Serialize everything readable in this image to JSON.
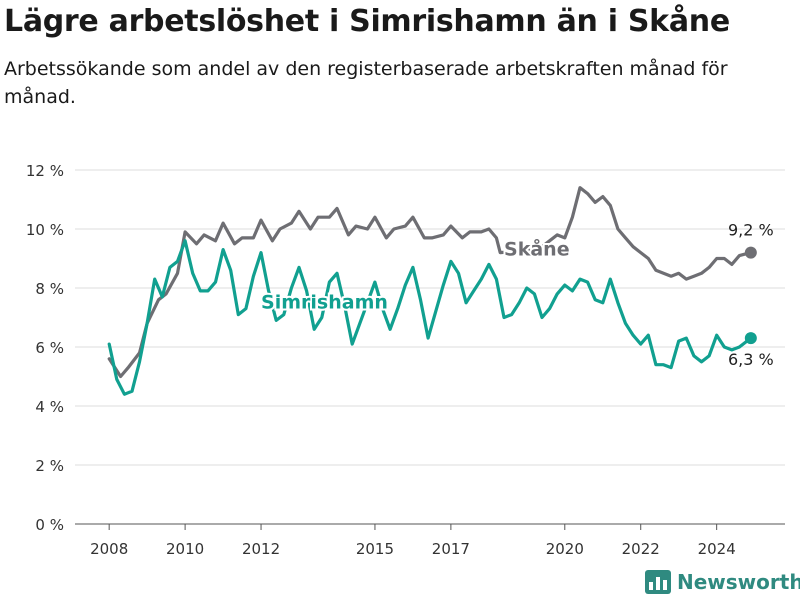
{
  "header": {
    "title": "Lägre arbetslöshet i Simrishamn än i Skåne",
    "subtitle": "Arbetssökande som andel av den registerbaserade arbetskraften månad för månad."
  },
  "brand": {
    "name": "Newsworthy",
    "color": "#2f8a80"
  },
  "chart_data": {
    "type": "line",
    "title": "Lägre arbetslöshet i Simrishamn än i Skåne",
    "subtitle": "Arbetssökande som andel av den registerbaserade arbetskraften månad för månad.",
    "xlabel": "",
    "ylabel": "",
    "x_ticks": [
      "2008",
      "2010",
      "2012",
      "2015",
      "2017",
      "2020",
      "2022",
      "2024"
    ],
    "y_ticks": [
      "0 %",
      "2 %",
      "4 %",
      "6 %",
      "8 %",
      "10 %",
      "12 %"
    ],
    "ylim": [
      0,
      12
    ],
    "xlim": [
      2007.1,
      2025.8
    ],
    "grid": true,
    "series": [
      {
        "name": "Skåne",
        "color": "#6e6e73",
        "end_label": "9,2 %",
        "points": [
          [
            2008.0,
            5.6
          ],
          [
            2008.3,
            5.0
          ],
          [
            2008.5,
            5.3
          ],
          [
            2008.8,
            5.8
          ],
          [
            2009.0,
            6.8
          ],
          [
            2009.3,
            7.6
          ],
          [
            2009.5,
            7.8
          ],
          [
            2009.8,
            8.5
          ],
          [
            2010.0,
            9.9
          ],
          [
            2010.3,
            9.5
          ],
          [
            2010.5,
            9.8
          ],
          [
            2010.8,
            9.6
          ],
          [
            2011.0,
            10.2
          ],
          [
            2011.3,
            9.5
          ],
          [
            2011.5,
            9.7
          ],
          [
            2011.8,
            9.7
          ],
          [
            2012.0,
            10.3
          ],
          [
            2012.3,
            9.6
          ],
          [
            2012.5,
            10.0
          ],
          [
            2012.8,
            10.2
          ],
          [
            2013.0,
            10.6
          ],
          [
            2013.3,
            10.0
          ],
          [
            2013.5,
            10.4
          ],
          [
            2013.8,
            10.4
          ],
          [
            2014.0,
            10.7
          ],
          [
            2014.3,
            9.8
          ],
          [
            2014.5,
            10.1
          ],
          [
            2014.8,
            10.0
          ],
          [
            2015.0,
            10.4
          ],
          [
            2015.3,
            9.7
          ],
          [
            2015.5,
            10.0
          ],
          [
            2015.8,
            10.1
          ],
          [
            2016.0,
            10.4
          ],
          [
            2016.3,
            9.7
          ],
          [
            2016.5,
            9.7
          ],
          [
            2016.8,
            9.8
          ],
          [
            2017.0,
            10.1
          ],
          [
            2017.3,
            9.7
          ],
          [
            2017.5,
            9.9
          ],
          [
            2017.8,
            9.9
          ],
          [
            2018.0,
            10.0
          ],
          [
            2018.2,
            9.7
          ],
          [
            2018.3,
            9.2
          ],
          [
            2019.3,
            9.3
          ],
          [
            2019.6,
            9.6
          ],
          [
            2019.8,
            9.8
          ],
          [
            2020.0,
            9.7
          ],
          [
            2020.2,
            10.4
          ],
          [
            2020.4,
            11.4
          ],
          [
            2020.6,
            11.2
          ],
          [
            2020.8,
            10.9
          ],
          [
            2021.0,
            11.1
          ],
          [
            2021.2,
            10.8
          ],
          [
            2021.4,
            10.0
          ],
          [
            2021.6,
            9.7
          ],
          [
            2021.8,
            9.4
          ],
          [
            2022.0,
            9.2
          ],
          [
            2022.2,
            9.0
          ],
          [
            2022.4,
            8.6
          ],
          [
            2022.6,
            8.5
          ],
          [
            2022.8,
            8.4
          ],
          [
            2023.0,
            8.5
          ],
          [
            2023.2,
            8.3
          ],
          [
            2023.4,
            8.4
          ],
          [
            2023.6,
            8.5
          ],
          [
            2023.8,
            8.7
          ],
          [
            2024.0,
            9.0
          ],
          [
            2024.2,
            9.0
          ],
          [
            2024.4,
            8.8
          ],
          [
            2024.6,
            9.1
          ],
          [
            2024.9,
            9.2
          ]
        ]
      },
      {
        "name": "Simrishamn",
        "color": "#11a090",
        "end_label": "6,3 %",
        "points": [
          [
            2008.0,
            6.1
          ],
          [
            2008.2,
            4.9
          ],
          [
            2008.4,
            4.4
          ],
          [
            2008.6,
            4.5
          ],
          [
            2008.8,
            5.5
          ],
          [
            2009.0,
            6.8
          ],
          [
            2009.2,
            8.3
          ],
          [
            2009.4,
            7.7
          ],
          [
            2009.6,
            8.7
          ],
          [
            2009.8,
            8.9
          ],
          [
            2010.0,
            9.6
          ],
          [
            2010.2,
            8.5
          ],
          [
            2010.4,
            7.9
          ],
          [
            2010.6,
            7.9
          ],
          [
            2010.8,
            8.2
          ],
          [
            2011.0,
            9.3
          ],
          [
            2011.2,
            8.6
          ],
          [
            2011.4,
            7.1
          ],
          [
            2011.6,
            7.3
          ],
          [
            2011.8,
            8.4
          ],
          [
            2012.0,
            9.2
          ],
          [
            2012.2,
            7.9
          ],
          [
            2012.4,
            6.9
          ],
          [
            2012.6,
            7.1
          ],
          [
            2012.8,
            8.0
          ],
          [
            2013.0,
            8.7
          ],
          [
            2013.2,
            7.9
          ],
          [
            2013.4,
            6.6
          ],
          [
            2013.6,
            7.0
          ],
          [
            2013.8,
            8.2
          ],
          [
            2014.0,
            8.5
          ],
          [
            2014.2,
            7.4
          ],
          [
            2014.4,
            6.1
          ],
          [
            2014.6,
            6.8
          ],
          [
            2014.8,
            7.5
          ],
          [
            2015.0,
            8.2
          ],
          [
            2015.2,
            7.3
          ],
          [
            2015.4,
            6.6
          ],
          [
            2015.6,
            7.3
          ],
          [
            2015.8,
            8.1
          ],
          [
            2016.0,
            8.7
          ],
          [
            2016.2,
            7.6
          ],
          [
            2016.4,
            6.3
          ],
          [
            2016.6,
            7.2
          ],
          [
            2016.8,
            8.1
          ],
          [
            2017.0,
            8.9
          ],
          [
            2017.2,
            8.5
          ],
          [
            2017.4,
            7.5
          ],
          [
            2017.6,
            7.9
          ],
          [
            2017.8,
            8.3
          ],
          [
            2018.0,
            8.8
          ],
          [
            2018.2,
            8.3
          ],
          [
            2018.4,
            7.0
          ],
          [
            2018.6,
            7.1
          ],
          [
            2018.8,
            7.5
          ],
          [
            2019.0,
            8.0
          ],
          [
            2019.2,
            7.8
          ],
          [
            2019.4,
            7.0
          ],
          [
            2019.6,
            7.3
          ],
          [
            2019.8,
            7.8
          ],
          [
            2020.0,
            8.1
          ],
          [
            2020.2,
            7.9
          ],
          [
            2020.4,
            8.3
          ],
          [
            2020.6,
            8.2
          ],
          [
            2020.8,
            7.6
          ],
          [
            2021.0,
            7.5
          ],
          [
            2021.2,
            8.3
          ],
          [
            2021.4,
            7.5
          ],
          [
            2021.6,
            6.8
          ],
          [
            2021.8,
            6.4
          ],
          [
            2022.0,
            6.1
          ],
          [
            2022.2,
            6.4
          ],
          [
            2022.4,
            5.4
          ],
          [
            2022.6,
            5.4
          ],
          [
            2022.8,
            5.3
          ],
          [
            2023.0,
            6.2
          ],
          [
            2023.2,
            6.3
          ],
          [
            2023.4,
            5.7
          ],
          [
            2023.6,
            5.5
          ],
          [
            2023.8,
            5.7
          ],
          [
            2024.0,
            6.4
          ],
          [
            2024.2,
            6.0
          ],
          [
            2024.4,
            5.9
          ],
          [
            2024.6,
            6.0
          ],
          [
            2024.9,
            6.3
          ]
        ]
      }
    ]
  }
}
